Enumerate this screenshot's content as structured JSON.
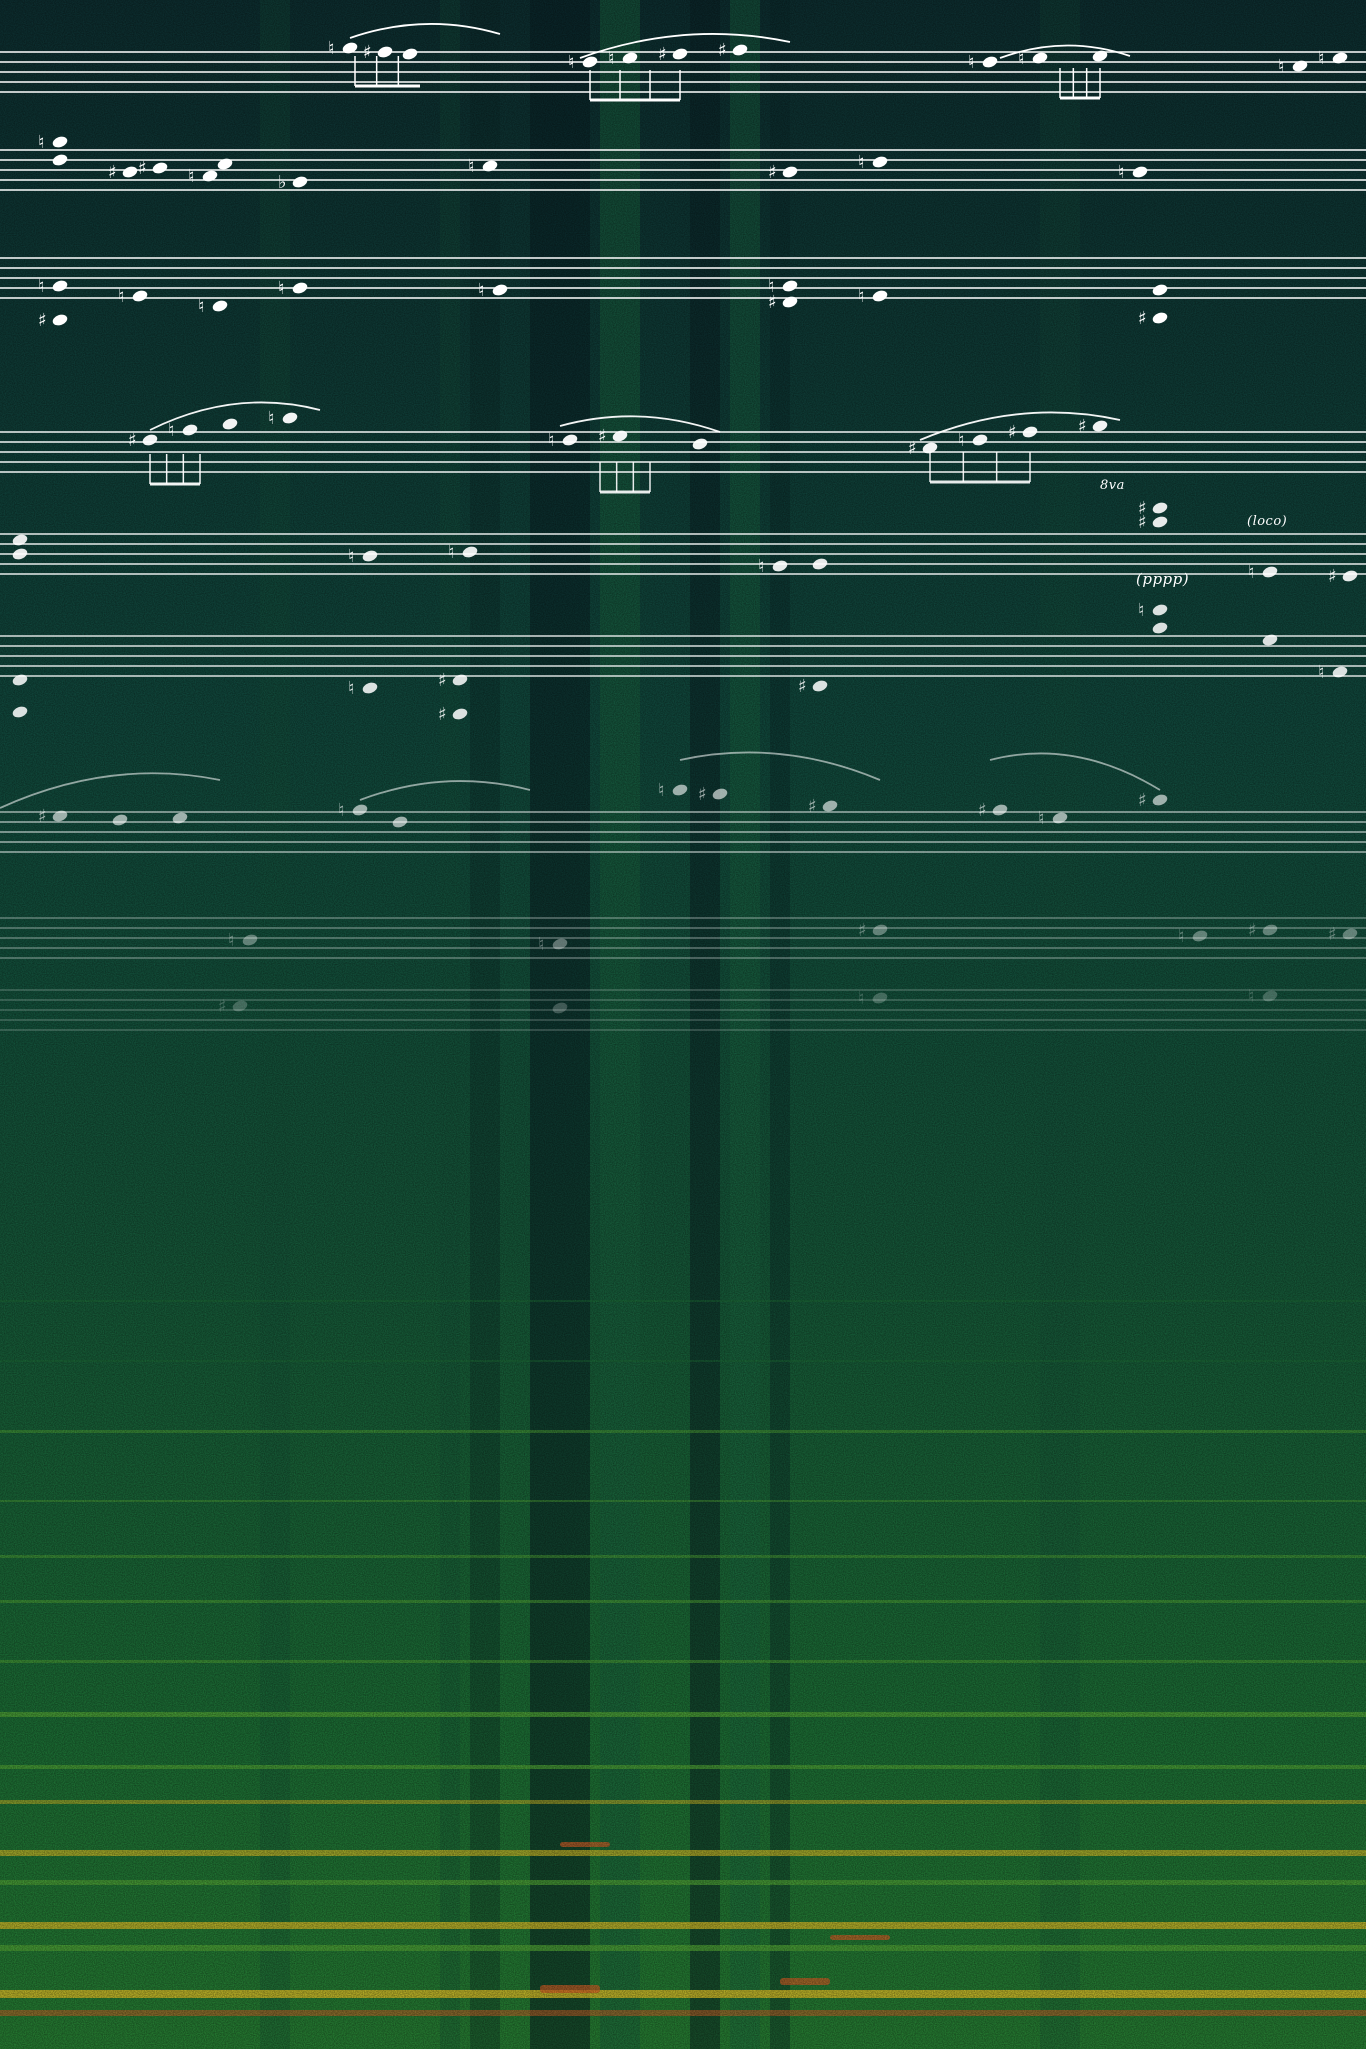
{
  "annotations": {
    "dynamic": "(pppp)",
    "loco": "(loco)",
    "ottava": "8va"
  },
  "palette": {
    "low": "#0d2f33",
    "mid": "#1f7a3c",
    "bright": "#57b43b",
    "high": "#ecd02a",
    "peak": "#f06a2a"
  }
}
